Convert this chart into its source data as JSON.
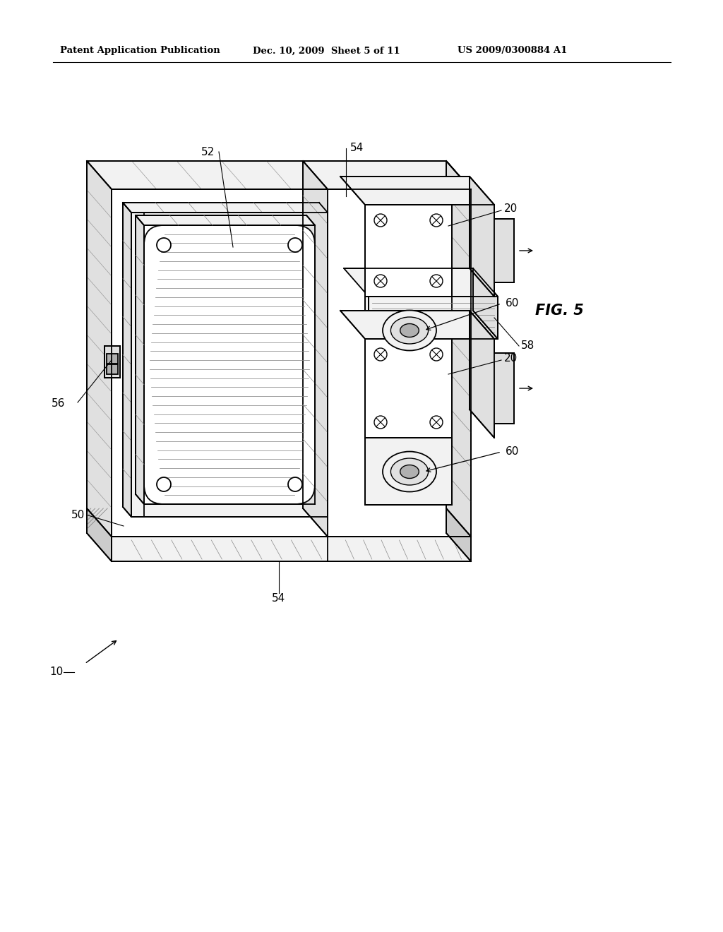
{
  "background_color": "#ffffff",
  "header_left": "Patent Application Publication",
  "header_center": "Dec. 10, 2009  Sheet 5 of 11",
  "header_right": "US 2009/0300884 A1",
  "fig_label": "FIG. 5",
  "line_color": "#000000",
  "fill_white": "#ffffff",
  "fill_light": "#f2f2f2",
  "fill_mid": "#e0e0e0",
  "fill_dark": "#cccccc",
  "fill_darker": "#b0b0b0"
}
